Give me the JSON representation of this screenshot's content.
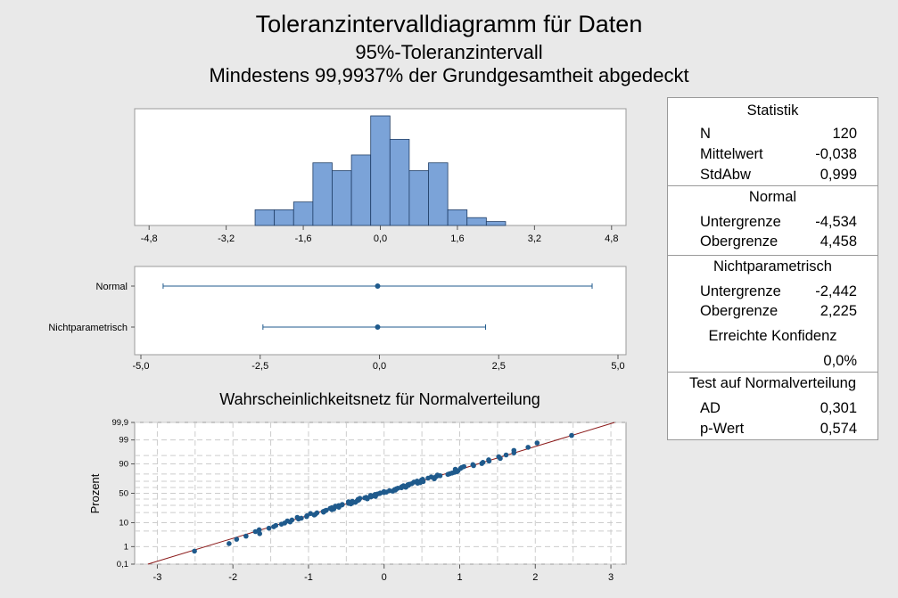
{
  "titles": {
    "main": "Toleranzintervalldiagramm für Daten",
    "sub1": "95%-Toleranzintervall",
    "sub2": "Mindestens 99,9937% der Grundgesamtheit abgedeckt"
  },
  "colors": {
    "bar_fill": "#7ba3d8",
    "bar_stroke": "#1f3d66",
    "interval": "#1f5a8c",
    "point": "#1f5a8c",
    "fit_line": "#8b1a1a",
    "grid": "#cccccc",
    "background": "#e9e9e9"
  },
  "chart_data": [
    {
      "type": "bar",
      "name": "histogram",
      "x_ticks": [
        "-4,8",
        "-3,2",
        "-1,6",
        "0,0",
        "1,6",
        "3,2",
        "4,8"
      ],
      "x_tick_values": [
        -4.8,
        -3.2,
        -1.6,
        0.0,
        1.6,
        3.2,
        4.8
      ],
      "xlim": [
        -5.1,
        5.1
      ],
      "bin_width": 0.4,
      "bins": [
        {
          "left": -2.6,
          "count": 2
        },
        {
          "left": -2.2,
          "count": 2
        },
        {
          "left": -1.8,
          "count": 3
        },
        {
          "left": -1.4,
          "count": 8
        },
        {
          "left": -1.0,
          "count": 7
        },
        {
          "left": -0.6,
          "count": 9
        },
        {
          "left": -0.2,
          "count": 14
        },
        {
          "left": 0.2,
          "count": 11
        },
        {
          "left": 0.6,
          "count": 7
        },
        {
          "left": 1.0,
          "count": 8
        },
        {
          "left": 1.4,
          "count": 2
        },
        {
          "left": 1.8,
          "count": 1
        },
        {
          "left": 2.2,
          "count": 0.5
        }
      ],
      "ymax": 14
    },
    {
      "type": "scatter",
      "name": "interval-plot",
      "categories": [
        "Normal",
        "Nichtparametrisch"
      ],
      "x_ticks": [
        "-5,0",
        "-2,5",
        "0,0",
        "2,5",
        "5,0"
      ],
      "x_tick_values": [
        -5,
        -2.5,
        0,
        2.5,
        5
      ],
      "xlim": [
        -5.0,
        5.0
      ],
      "intervals": [
        {
          "category": "Normal",
          "lower": -4.534,
          "upper": 4.458,
          "center": -0.038
        },
        {
          "category": "Nichtparametrisch",
          "lower": -2.442,
          "upper": 2.225,
          "center": -0.038
        }
      ]
    },
    {
      "type": "scatter",
      "name": "probability-plot",
      "title": "Wahrscheinlichkeitsnetz für Normalverteilung",
      "ylabel": "Prozent",
      "x_ticks": [
        "-3",
        "-2",
        "-1",
        "0",
        "1",
        "2",
        "3"
      ],
      "x_tick_values": [
        -3,
        -2,
        -1,
        0,
        1,
        2,
        3
      ],
      "xlim": [
        -3.3,
        3.2
      ],
      "y_ticks": [
        "0,1",
        "1",
        "10",
        "50",
        "90",
        "99",
        "99,9"
      ],
      "y_tick_values": [
        0.1,
        1,
        10,
        50,
        90,
        99,
        99.9
      ],
      "fit_line": {
        "mean": -0.038,
        "sd": 0.999
      },
      "n": 120
    }
  ],
  "stats": {
    "statistik": {
      "header": "Statistik",
      "rows": [
        {
          "label": "N",
          "value": "120"
        },
        {
          "label": "Mittelwert",
          "value": "-0,038"
        },
        {
          "label": "StdAbw",
          "value": "0,999"
        }
      ]
    },
    "normal": {
      "header": "Normal",
      "rows": [
        {
          "label": "Untergrenze",
          "value": "-4,534"
        },
        {
          "label": "Obergrenze",
          "value": "4,458"
        }
      ]
    },
    "nichtparametrisch": {
      "header": "Nichtparametrisch",
      "rows": [
        {
          "label": "Untergrenze",
          "value": "-2,442"
        },
        {
          "label": "Obergrenze",
          "value": "2,225"
        }
      ],
      "konfidenz_label": "Erreichte Konfidenz",
      "konfidenz_value": "0,0%"
    },
    "normtest": {
      "header": "Test auf Normalverteilung",
      "rows": [
        {
          "label": "AD",
          "value": "0,301"
        },
        {
          "label": "p-Wert",
          "value": "0,574"
        }
      ]
    }
  }
}
